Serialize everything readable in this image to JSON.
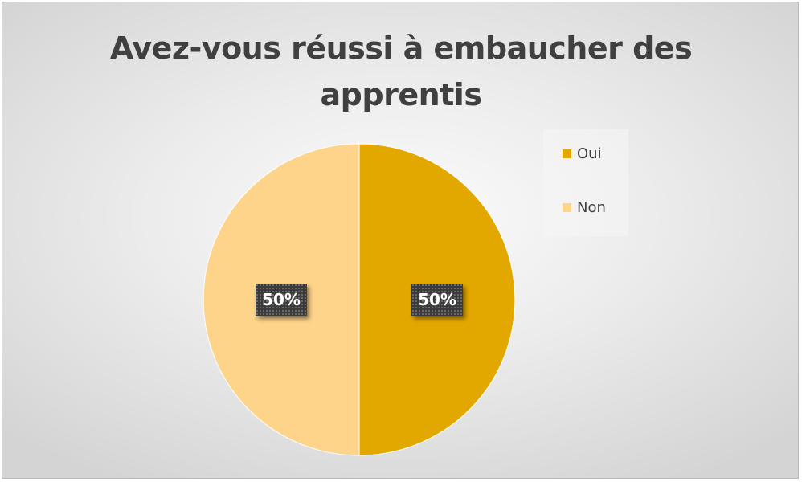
{
  "chart_data": {
    "type": "pie",
    "title": "Avez-vous réussi à embaucher des apprentis",
    "title_lines": [
      "Avez-vous réussi à embaucher des",
      "apprentis"
    ],
    "categories": [
      "Oui",
      "Non"
    ],
    "values": [
      50,
      50
    ],
    "data_labels": [
      "50%",
      "50%"
    ],
    "colors": [
      "#E3A800",
      "#FED38A"
    ],
    "legend_position": "right"
  }
}
